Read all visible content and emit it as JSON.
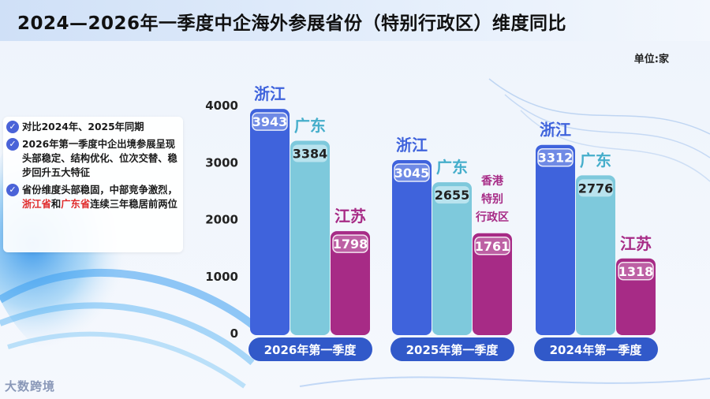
{
  "title": "2024—2026年一季度中企海外参展省份（特别行政区）维度同比",
  "unit": "单位:家",
  "notes": [
    {
      "parts": [
        {
          "text": "对比2024年、2025年同期",
          "red": false
        }
      ]
    },
    {
      "parts": [
        {
          "text": "2026年第一季度中企出境参展呈现头部稳定、结构优化、位次交替、稳步回升五大特征",
          "red": false
        }
      ]
    },
    {
      "parts": [
        {
          "text": "省份维度头部稳固，中部竞争激烈，",
          "red": false
        },
        {
          "text": "浙江省",
          "red": true
        },
        {
          "text": "和",
          "red": false
        },
        {
          "text": "广东省",
          "red": true
        },
        {
          "text": "连续三年稳居前两位",
          "red": false
        }
      ]
    }
  ],
  "logo": "大数跨境",
  "colors": {
    "zhejiang": "#3f63dc",
    "guangdong": "#7ec9dc",
    "jiangsu": "#a72b86",
    "hongkong": "#a72b86"
  },
  "chart_data": {
    "type": "bar",
    "ylim": [
      0,
      4000
    ],
    "yticks": [
      0,
      1000,
      2000,
      3000,
      4000
    ],
    "groups": [
      {
        "label": "2026年第一季度",
        "bars": [
          {
            "name": "浙江",
            "value": 3943,
            "color": "#3f63dc",
            "label_color": "#3f63dc"
          },
          {
            "name": "广东",
            "value": 3384,
            "color": "#7ec9dc",
            "label_color": "#45aecb"
          },
          {
            "name": "江苏",
            "value": 1798,
            "color": "#a72b86",
            "label_color": "#a72b86"
          }
        ]
      },
      {
        "label": "2025年第一季度",
        "bars": [
          {
            "name": "浙江",
            "value": 3045,
            "color": "#3f63dc",
            "label_color": "#3f63dc"
          },
          {
            "name": "广东",
            "value": 2655,
            "color": "#7ec9dc",
            "label_color": "#45aecb"
          },
          {
            "name": "香港特别行政区",
            "value": 1761,
            "color": "#a72b86",
            "label_color": "#a72b86"
          }
        ]
      },
      {
        "label": "2024年第一季度",
        "bars": [
          {
            "name": "浙江",
            "value": 3312,
            "color": "#3f63dc",
            "label_color": "#3f63dc"
          },
          {
            "name": "广东",
            "value": 2776,
            "color": "#7ec9dc",
            "label_color": "#45aecb"
          },
          {
            "name": "江苏",
            "value": 1318,
            "color": "#a72b86",
            "label_color": "#a72b86"
          }
        ]
      }
    ]
  }
}
